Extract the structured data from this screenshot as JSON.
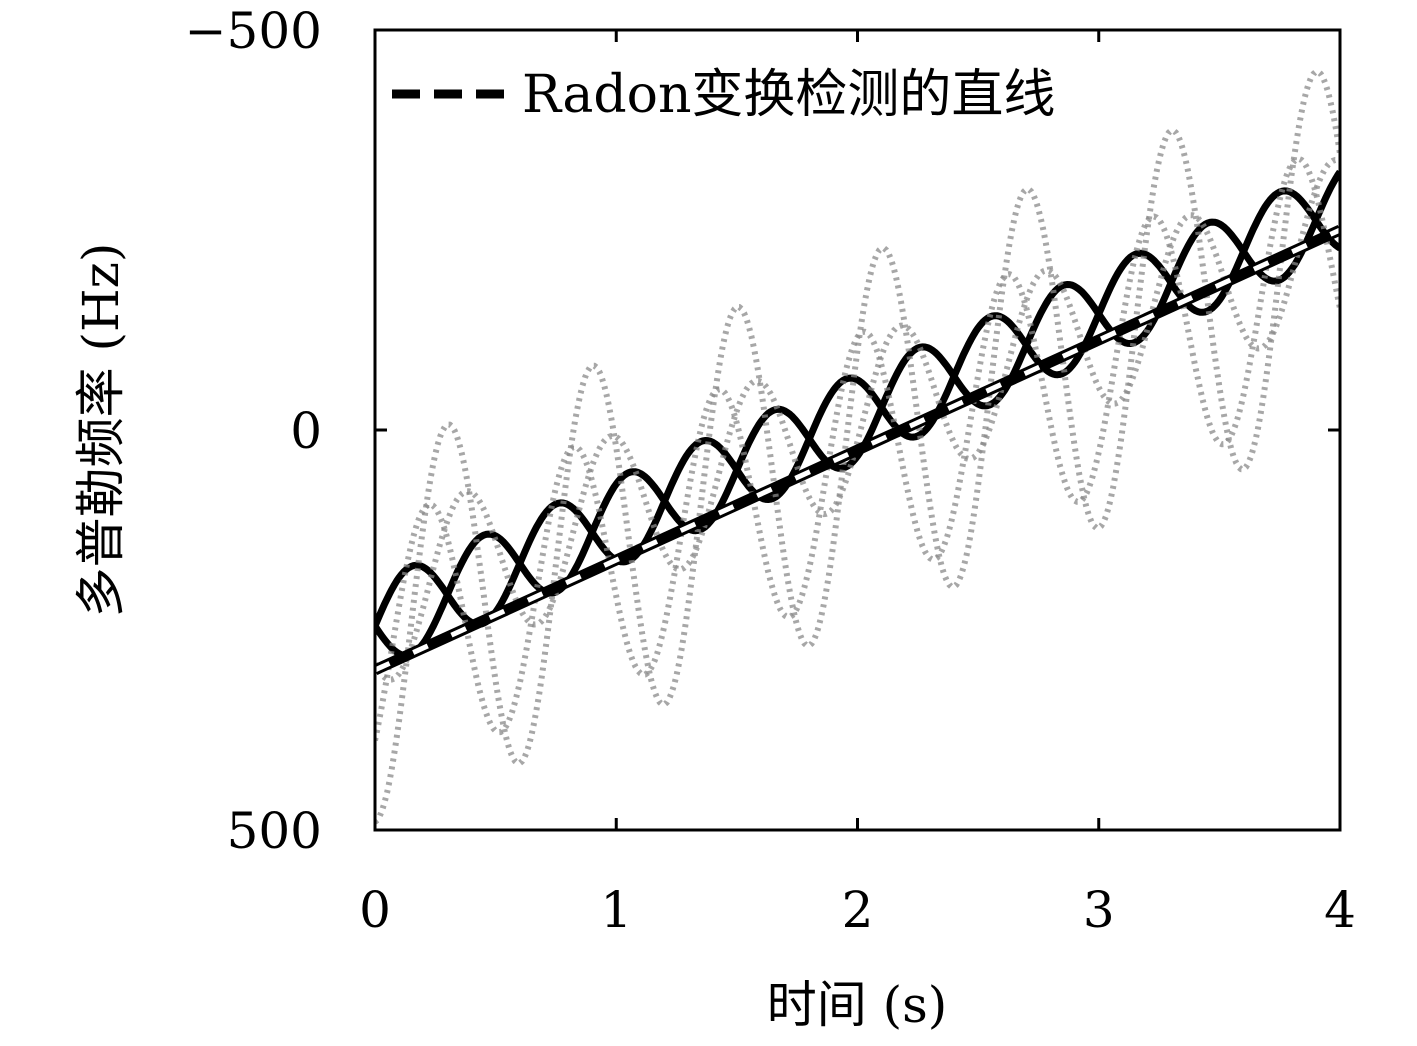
{
  "chart_data": {
    "type": "line",
    "subtype": "spectrogram-with-overlay",
    "xlabel": "时间 (s)",
    "ylabel": "多普勒频率 (Hz)",
    "xlim": [
      0,
      4
    ],
    "ylim": [
      -500,
      500
    ],
    "y_inverted": true,
    "x_ticks": [
      "0",
      "1",
      "2",
      "3",
      "4"
    ],
    "y_ticks": [
      "−500",
      "0",
      "500"
    ],
    "legend": {
      "position": "top-left",
      "entries": [
        "Radon变换检测的直线"
      ]
    },
    "series": [
      {
        "name": "Radon变换检测的直线",
        "style": "dashed-black-white",
        "x": [
          0,
          4
        ],
        "y": [
          300,
          -250
        ]
      }
    ],
    "background_curves": [
      {
        "role": "strong",
        "mean_start": 245,
        "mean_end": -275,
        "amplitude": 55,
        "period": 0.6,
        "phase": 0
      },
      {
        "role": "strong",
        "mean_start": 245,
        "mean_end": -275,
        "amplitude": 55,
        "period": 0.6,
        "phase": 3.1416
      },
      {
        "role": "faint",
        "mean_start": 260,
        "mean_end": -230,
        "amplitude": 230,
        "period": 0.6,
        "phase": 1.57
      },
      {
        "role": "faint",
        "mean_start": 220,
        "mean_end": -240,
        "amplitude": 100,
        "period": 0.6,
        "phase": 0.8
      },
      {
        "role": "faint",
        "mean_start": 280,
        "mean_end": -200,
        "amplitude": 160,
        "period": 0.6,
        "phase": 2.4
      }
    ],
    "colors": {
      "strong": "#000000",
      "faint": "#8a8a8a",
      "background": "#ffffff"
    },
    "grid": false
  }
}
